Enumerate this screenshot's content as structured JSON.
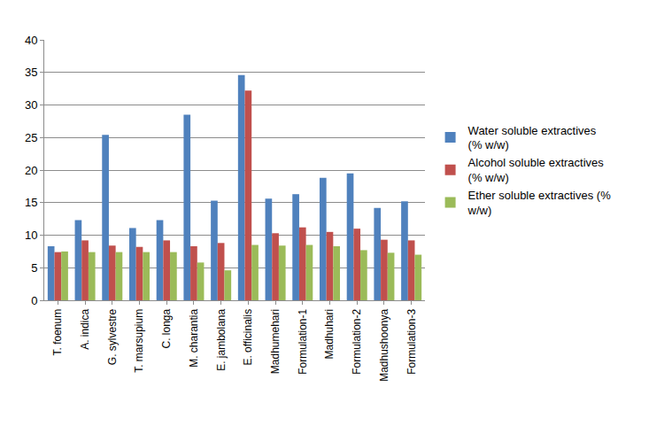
{
  "chart_data": {
    "type": "bar",
    "categories": [
      "T. foenum",
      "A. indica",
      "G. sylvestre",
      "T. marsupium",
      "C. longa",
      "M. charantia",
      "E. jambolana",
      "E. officinalis",
      "Madhumehari",
      "Formulation-1",
      "Madhuhari",
      "Formulation-2",
      "Madhushoonya",
      "Formulation-3"
    ],
    "series": [
      {
        "name": "Water soluble extractives  (% w/w)",
        "color": "#4f81bd",
        "values": [
          8.3,
          12.3,
          25.4,
          11.1,
          12.3,
          28.5,
          15.3,
          34.6,
          15.6,
          16.3,
          18.8,
          19.5,
          14.2,
          15.2
        ]
      },
      {
        "name": "Alcohol soluble extractives (% w/w)",
        "color": "#c0504d",
        "values": [
          7.4,
          9.2,
          8.4,
          8.2,
          9.2,
          8.3,
          8.8,
          32.2,
          10.3,
          11.2,
          10.5,
          11.0,
          9.3,
          9.2
        ]
      },
      {
        "name": "Ether soluble extractives (% w/w)",
        "color": "#9bbb59",
        "values": [
          7.5,
          7.4,
          7.4,
          7.4,
          7.4,
          5.8,
          4.6,
          8.5,
          8.4,
          8.5,
          8.3,
          7.7,
          7.3,
          7.0
        ]
      }
    ],
    "ylim": [
      0,
      40
    ],
    "yticks": [
      0,
      5,
      10,
      15,
      20,
      25,
      30,
      35,
      40
    ],
    "grid": true,
    "legend": "right"
  }
}
